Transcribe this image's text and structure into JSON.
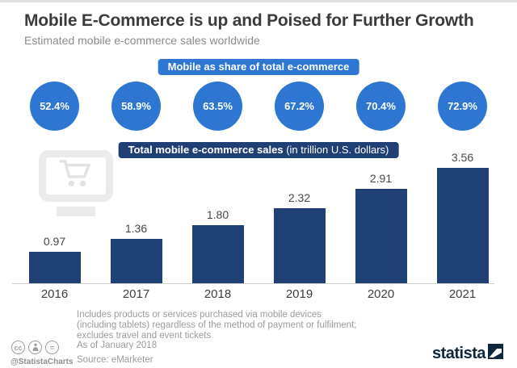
{
  "header": {
    "title": "Mobile E-Commerce is up and Poised for Further Growth",
    "subtitle": "Estimated mobile e-commerce sales worldwide"
  },
  "share_banner": {
    "label": "Mobile as share of total e-commerce"
  },
  "sales_banner": {
    "label_bold": "Total mobile e-commerce sales",
    "label_rest": " (in trillion U.S. dollars)"
  },
  "chart_data": {
    "type": "bar",
    "categories": [
      "2016",
      "2017",
      "2018",
      "2019",
      "2020",
      "2021"
    ],
    "series": [
      {
        "name": "Mobile as share of total e-commerce (%)",
        "values": [
          52.4,
          58.9,
          63.5,
          67.2,
          70.4,
          72.9
        ],
        "display": [
          "52.4%",
          "58.9%",
          "63.5%",
          "67.2%",
          "70.4%",
          "72.9%"
        ],
        "style": "circle-badges"
      },
      {
        "name": "Total mobile e-commerce sales (in trillion U.S. dollars)",
        "values": [
          0.97,
          1.36,
          1.8,
          2.32,
          2.91,
          3.56
        ],
        "display": [
          "0.97",
          "1.36",
          "1.80",
          "2.32",
          "2.91",
          "3.56"
        ],
        "style": "bars"
      }
    ],
    "title": "Mobile E-Commerce is up and Poised for Further Growth",
    "subtitle": "Estimated mobile e-commerce sales worldwide",
    "xlabel": "",
    "ylabel": "Sales (trillion U.S. dollars)",
    "ylim": [
      0,
      3.56
    ],
    "grid": false,
    "legend_position": "none",
    "value_labels": true
  },
  "footnote": {
    "line1": "Includes products or services purchased via mobile devices",
    "line2": "(including tablets) regardless of the method of payment or fulfilment;",
    "line3": "excludes travel and event tickets",
    "line4": "As of January 2018"
  },
  "source": "Source: eMarketer",
  "branding": {
    "handle": "@StatistaCharts",
    "logo_text": "statista",
    "cc_license": [
      "cc",
      "attribution",
      "no-derivatives"
    ]
  },
  "colors": {
    "accent_blue": "#2d76d2",
    "navy": "#1e4075",
    "logo_navy": "#0f263f",
    "watermark_gray": "#ebebeb",
    "cart_gray": "#e3e3e3"
  }
}
